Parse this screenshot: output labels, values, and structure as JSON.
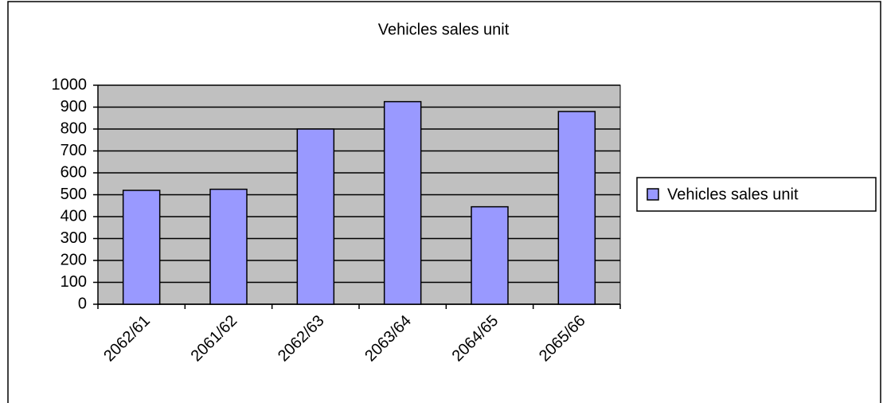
{
  "chart_data": {
    "type": "bar",
    "title": "Vehicles sales unit",
    "categories": [
      "2062/61",
      "2061/62",
      "2062/63",
      "2063/64",
      "2064/65",
      "2065/66"
    ],
    "series": [
      {
        "name": "Vehicles sales unit",
        "color": "#9999ff",
        "values": [
          520,
          525,
          800,
          925,
          445,
          880
        ]
      }
    ],
    "ylim": [
      0,
      1000
    ],
    "yticks": [
      0,
      100,
      200,
      300,
      400,
      500,
      600,
      700,
      800,
      900,
      1000
    ],
    "grid": true,
    "legend": "right",
    "plot_background": "#c0c0c0"
  }
}
